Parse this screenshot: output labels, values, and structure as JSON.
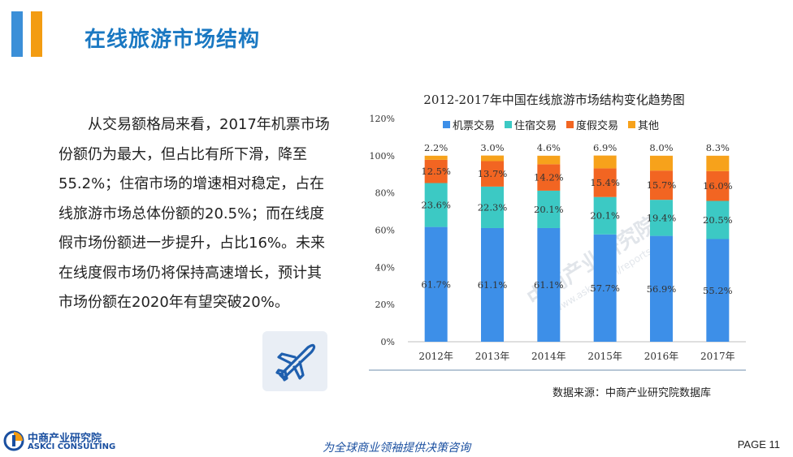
{
  "header": {
    "title": "在线旅游市场结构"
  },
  "body": {
    "paragraph": "从交易额格局来看，2017年机票市场份额仍为最大，但占比有所下滑，降至55.2%；住宿市场的增速相对稳定，占在线旅游市场总体份额的20.5%；而在线度假市场份额进一步提升，占比16%。未来在线度假市场仍将保持高速增长，预计其市场份额在2020年有望突破20%。"
  },
  "icons": {
    "plane": "airplane-icon"
  },
  "chart_data": {
    "type": "bar",
    "stacked": true,
    "title": "2012-2017年中国在线旅游市场结构变化趋势图",
    "categories": [
      "2012年",
      "2013年",
      "2014年",
      "2015年",
      "2016年",
      "2017年"
    ],
    "series": [
      {
        "name": "机票交易",
        "color": "#3d8fe8",
        "values": [
          61.7,
          61.1,
          61.1,
          57.7,
          56.9,
          55.2
        ],
        "labels": [
          "61.7%",
          "61.1%",
          "61.1%",
          "57.7%",
          "56.9%",
          "55.2%"
        ]
      },
      {
        "name": "住宿交易",
        "color": "#3cc9c4",
        "values": [
          23.6,
          22.3,
          20.1,
          20.1,
          19.4,
          20.5
        ],
        "labels": [
          "23.6%",
          "22.3%",
          "20.1%",
          "20.1%",
          "19.4%",
          "20.5%"
        ]
      },
      {
        "name": "度假交易",
        "color": "#f26522",
        "values": [
          12.5,
          13.7,
          14.2,
          15.4,
          15.7,
          16.0
        ],
        "labels": [
          "12.5%",
          "13.7%",
          "14.2%",
          "15.4%",
          "15.7%",
          "16.0%"
        ]
      },
      {
        "name": "其他",
        "color": "#f7a21b",
        "values": [
          2.2,
          3.0,
          4.6,
          6.9,
          8.0,
          8.3
        ],
        "labels": [
          "2.2%",
          "3.0%",
          "4.6%",
          "6.9%",
          "8.0%",
          "8.3%"
        ]
      }
    ],
    "yticks": [
      "0%",
      "20%",
      "40%",
      "60%",
      "80%",
      "100%",
      "120%"
    ],
    "ylim": [
      0,
      120
    ],
    "legend": "top",
    "grid": false
  },
  "source": "数据来源：中商产业研究院数据库",
  "footer": {
    "logo_cn": "中商产业研究院",
    "logo_en": "ASKCI CONSULTING",
    "slogan": "为全球商业领袖提供决策咨询",
    "page": "PAGE  11"
  },
  "watermark": {
    "cn": "中商产业研究院",
    "url": "www.askci.com/reports/"
  }
}
